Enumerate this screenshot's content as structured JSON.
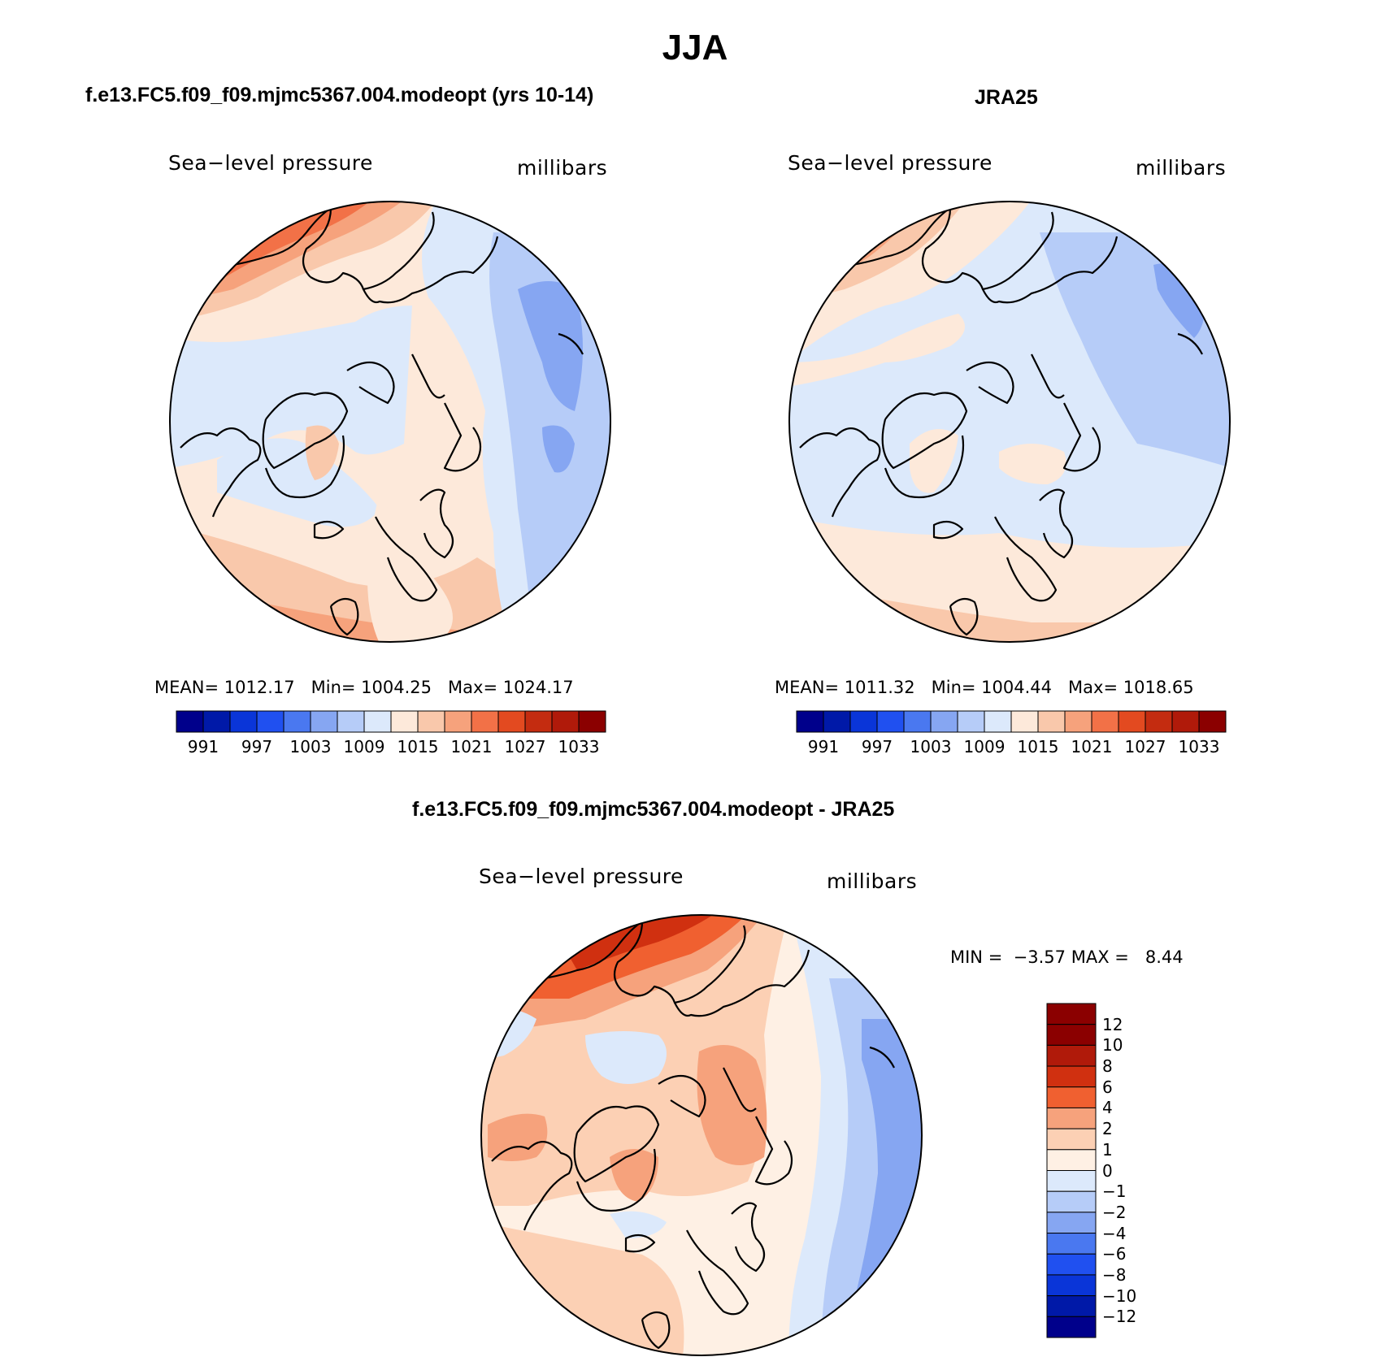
{
  "title": "JJA",
  "panels": [
    {
      "id": "model",
      "title": "f.e13.FC5.f09_f09.mjmc5367.004.modeopt (yrs 10-14)",
      "variable": "Sea−level pressure",
      "units": "millibars",
      "stats": {
        "mean_label": "MEAN=",
        "mean": "1012.17",
        "min_label": "Min=",
        "min": "1004.25",
        "max_label": "Max=",
        "max": "1024.17"
      },
      "colorbar_ticks": [
        "991",
        "997",
        "1003",
        "1009",
        "1015",
        "1021",
        "1027",
        "1033"
      ]
    },
    {
      "id": "obs",
      "title": "JRA25",
      "variable": "Sea−level pressure",
      "units": "millibars",
      "stats": {
        "mean_label": "MEAN=",
        "mean": "1011.32",
        "min_label": "Min=",
        "min": "1004.44",
        "max_label": "Max=",
        "max": "1018.65"
      },
      "colorbar_ticks": [
        "991",
        "997",
        "1003",
        "1009",
        "1015",
        "1021",
        "1027",
        "1033"
      ]
    },
    {
      "id": "diff",
      "title": "f.e13.FC5.f09_f09.mjmc5367.004.modeopt - JRA25",
      "variable": "Sea−level pressure",
      "units": "millibars",
      "stats": {
        "min_label": "MIN =",
        "min": "−3.57",
        "max_label": "MAX =",
        "max": "8.44"
      },
      "colorbar_ticks": [
        "12",
        "10",
        "8",
        "6",
        "4",
        "2",
        "1",
        "0",
        "−1",
        "−2",
        "−4",
        "−6",
        "−8",
        "−10",
        "−12"
      ]
    }
  ],
  "colors": {
    "abs_scale": [
      "#00008b",
      "#0019a8",
      "#0a35d8",
      "#2050f0",
      "#4a78f0",
      "#86a6f2",
      "#b6ccf8",
      "#dce9fb",
      "#fde9da",
      "#f9c8ab",
      "#f6a27c",
      "#f27147",
      "#e34a20",
      "#c42c10",
      "#b01a0a",
      "#8b0000"
    ],
    "diff_scale": [
      "#8b0000",
      "#b01a0a",
      "#d03010",
      "#f06030",
      "#f6a27c",
      "#fcd0b4",
      "#fef0e4",
      "#dce9fb",
      "#b6ccf8",
      "#86a6f2",
      "#4a78f0",
      "#2050f0",
      "#0a35d8",
      "#0019a8",
      "#00008b"
    ]
  },
  "map_data": {
    "projection": "north polar stereographic",
    "season": "JJA",
    "model_regions": {
      "high_pacific_north_america": "1021-1027",
      "north_atlantic_ocean": "1015-1021",
      "siberia_east": "1003-1009",
      "central_arctic": "1009-1015",
      "greenland_interior": "1015-1021"
    },
    "obs_regions": {
      "north_pacific": "1015-1021",
      "eurasia": "1003-1009",
      "central_arctic": "1009-1015",
      "greenland_interior": "1015-1021"
    },
    "diff_regions": {
      "north_pacific": "6-8",
      "siberia": "2-4",
      "greenland": "2-4",
      "eastern_eurasia": "-4 to -2"
    }
  }
}
